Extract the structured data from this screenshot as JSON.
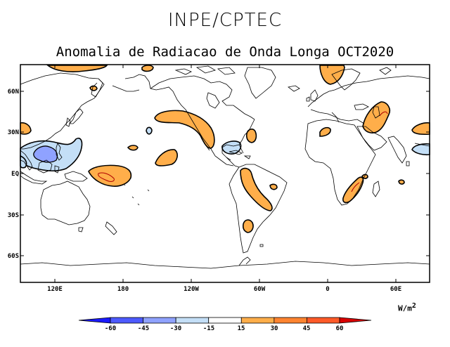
{
  "header": {
    "agency": "INPE/CPTEC",
    "title": "Anomalia de Radiacao de Onda Longa OCT2020"
  },
  "axes": {
    "lat_labels": [
      "60N",
      "30N",
      "EQ",
      "30S",
      "60S"
    ],
    "lon_labels": [
      "120E",
      "180",
      "120W",
      "60W",
      "0",
      "60E"
    ]
  },
  "colorbar": {
    "unit": "W/m",
    "unit_exp": "2",
    "ticks": [
      "-60",
      "-45",
      "-30",
      "-15",
      "15",
      "30",
      "45",
      "60"
    ],
    "colors": [
      "#1a1aff",
      "#4d5aff",
      "#8fa2ff",
      "#c4dff7",
      "#ffffff",
      "#ffae4a",
      "#ff8430",
      "#ff5a28",
      "#d80000"
    ]
  },
  "palette": {
    "positive": "#ffae4a",
    "positive_strong": "#ff8430",
    "negative": "#c4dff7",
    "negative_strong": "#8fa2ff",
    "land": "#000000"
  }
}
